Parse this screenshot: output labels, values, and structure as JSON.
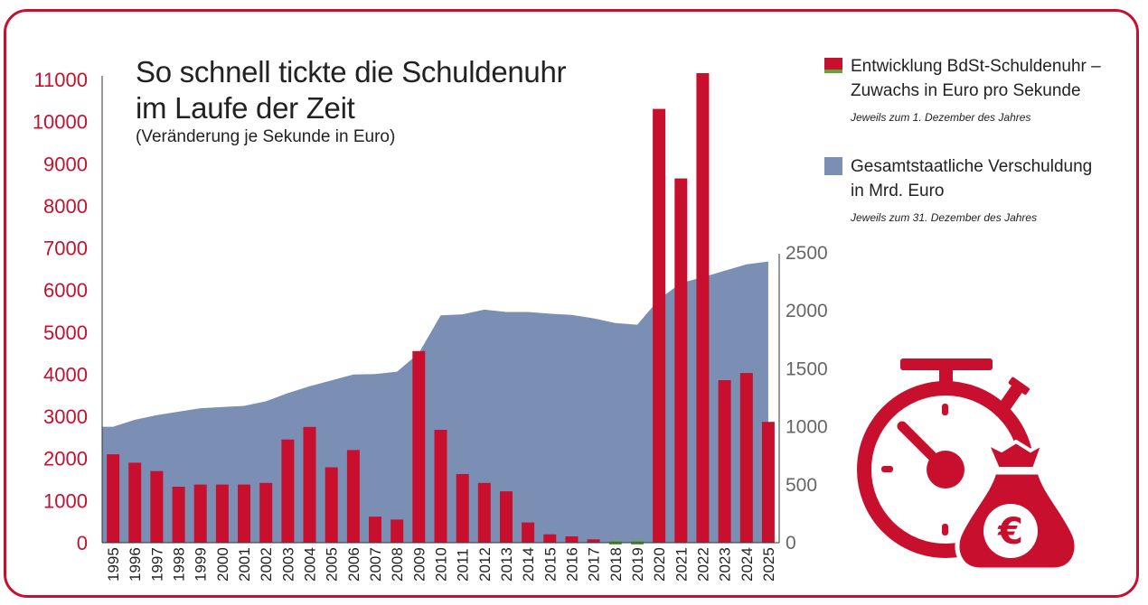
{
  "header": {
    "title_line1": "So schnell tickte die Schuldenuhr",
    "title_line2": "im Laufe der Zeit",
    "subtitle": "(Veränderung je Sekunde in Euro)"
  },
  "legend": {
    "clock": {
      "label_line1": "Entwicklung BdSt-Schuldenuhr –",
      "label_line2": "Zuwachs in Euro pro Sekunde",
      "note": "Jeweils zum 1. Dezember des Jahres"
    },
    "debt": {
      "label_line1": "Gesamtstaatliche Verschuldung",
      "label_line2": "in Mrd. Euro",
      "note": "Jeweils zum 31. Dezember des Jahres"
    }
  },
  "colors": {
    "accent": "#c8102e",
    "bar": "#c8102e",
    "bar_negative": "#5aa83c",
    "area": "#7b8fb5",
    "tick_left": "#c8102e",
    "tick_right": "#666666"
  },
  "chart_data": {
    "type": "bar",
    "title": "So schnell tickte die Schuldenuhr im Laufe der Zeit",
    "subtitle": "(Veränderung je Sekunde in Euro)",
    "categories": [
      "1995",
      "1996",
      "1997",
      "1998",
      "1999",
      "2000",
      "2001",
      "2002",
      "2003",
      "2004",
      "2005",
      "2006",
      "2007",
      "2008",
      "2009",
      "2010",
      "2011",
      "2012",
      "2013",
      "2014",
      "2015",
      "2016",
      "2017",
      "2018",
      "2019",
      "2020",
      "2021",
      "2022",
      "2023",
      "2024",
      "2025"
    ],
    "series": [
      {
        "name": "Entwicklung BdSt-Schuldenuhr – Zuwachs in Euro pro Sekunde",
        "type": "bar",
        "axis": "left",
        "values": [
          2100,
          1900,
          1700,
          1330,
          1380,
          1380,
          1380,
          1420,
          2450,
          2750,
          1790,
          2200,
          620,
          550,
          4550,
          2680,
          1630,
          1420,
          1220,
          480,
          200,
          150,
          80,
          -60,
          -60,
          10300,
          8650,
          11150,
          3860,
          4030,
          2870
        ]
      },
      {
        "name": "Gesamtstaatliche Verschuldung in Mrd. Euro",
        "type": "area",
        "axis": "right",
        "values": [
          1000,
          1060,
          1100,
          1130,
          1160,
          1170,
          1180,
          1220,
          1290,
          1350,
          1400,
          1450,
          1455,
          1475,
          1635,
          1960,
          1970,
          2010,
          1990,
          1990,
          1975,
          1965,
          1935,
          1895,
          1880,
          2100,
          2240,
          2290,
          2345,
          2400,
          2425
        ]
      }
    ],
    "y_left": {
      "min": 0,
      "max": 11000,
      "ticks": [
        "0",
        "1000",
        "2000",
        "3000",
        "4000",
        "5000",
        "6000",
        "7000",
        "8000",
        "9000",
        "10000",
        "11000"
      ]
    },
    "y_right": {
      "min": 0,
      "max": 2500,
      "ticks": [
        "0",
        "500",
        "1000",
        "1500",
        "2000",
        "2500"
      ]
    },
    "xlabel": "",
    "ylabel": ""
  }
}
